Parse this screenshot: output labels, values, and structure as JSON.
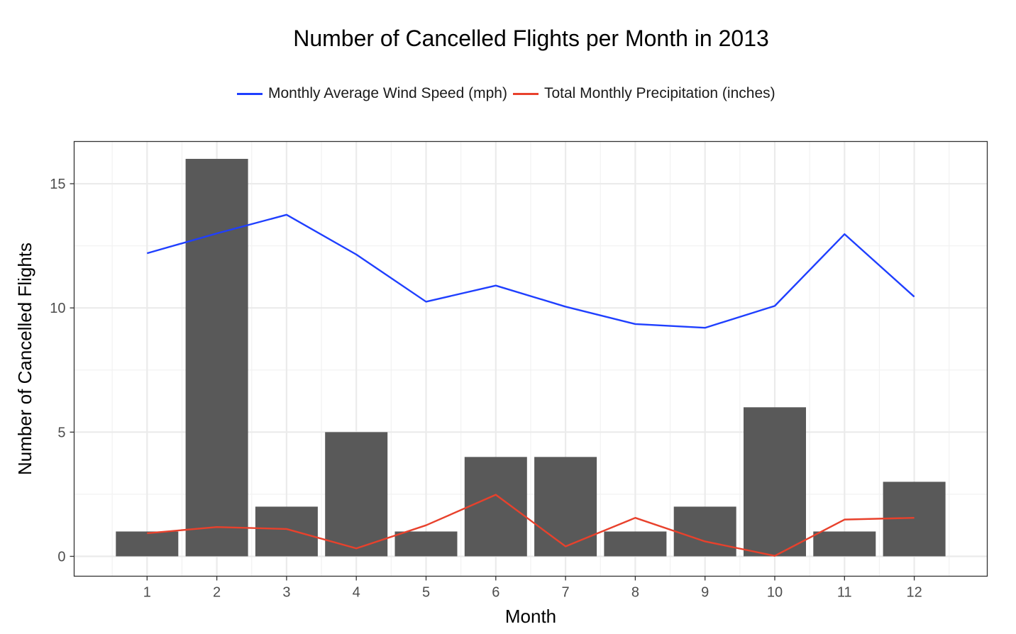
{
  "chart_data": {
    "type": "bar",
    "title": "Number of Cancelled Flights per Month in 2013",
    "xlabel": "Month",
    "ylabel": "Number of Cancelled Flights",
    "categories": [
      "1",
      "2",
      "3",
      "4",
      "5",
      "6",
      "7",
      "8",
      "9",
      "10",
      "11",
      "12"
    ],
    "values": [
      1,
      16,
      2,
      5,
      1,
      4,
      4,
      1,
      2,
      6,
      1,
      3
    ],
    "bar_color": "#595959",
    "ylim": [
      -0.8,
      16.7
    ],
    "yticks": [
      0,
      5,
      10,
      15
    ],
    "grid": true,
    "legend_position": "top",
    "lines": [
      {
        "name": "Monthly Average Wind Speed (mph)",
        "color": "#1f3fff",
        "values": [
          12.2,
          13.0,
          13.75,
          12.15,
          10.25,
          10.9,
          10.05,
          9.35,
          9.2,
          10.08,
          12.97,
          10.45
        ]
      },
      {
        "name": "Total Monthly Precipitation (inches)",
        "color": "#e8412c",
        "values": [
          0.93,
          1.18,
          1.1,
          0.32,
          1.25,
          2.48,
          0.4,
          1.55,
          0.6,
          0.02,
          1.48,
          1.55
        ]
      }
    ]
  }
}
